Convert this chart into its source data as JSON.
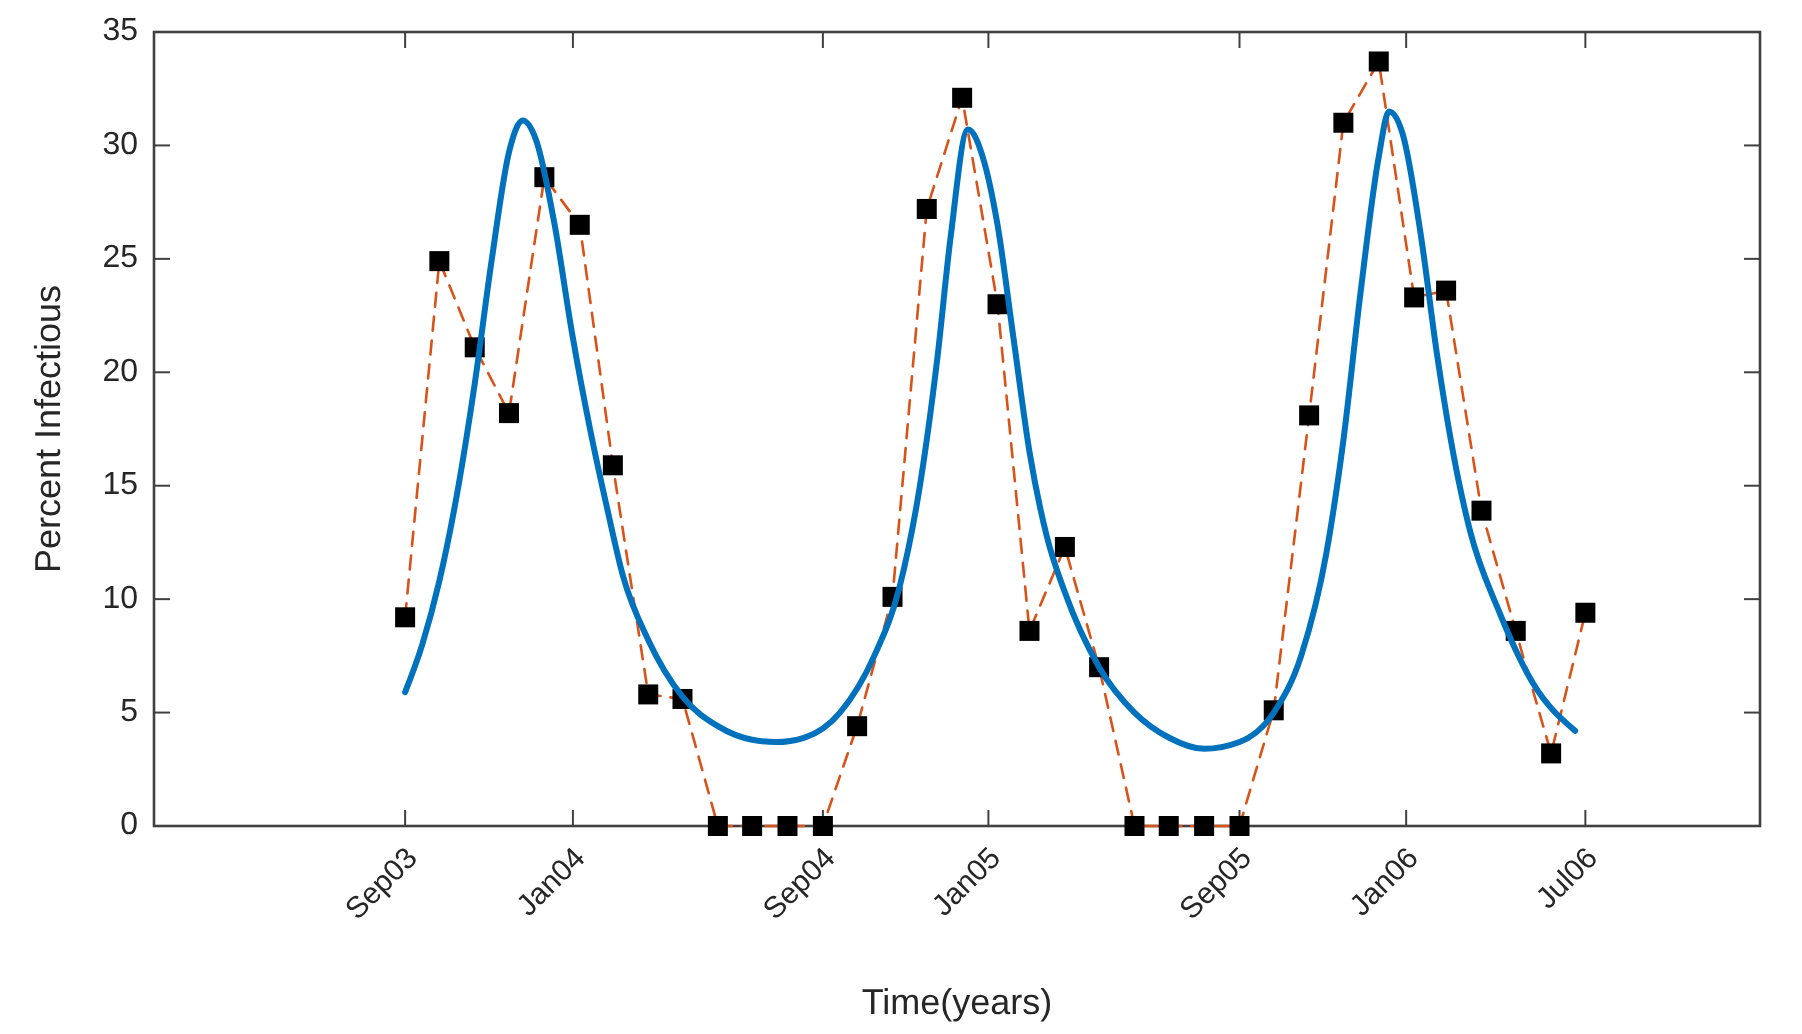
{
  "chart_data": {
    "type": "line",
    "xlabel": "Time(years)",
    "ylabel": "Percent Infectious",
    "xlim": [
      "2003-01-24",
      "2006-12-01"
    ],
    "ylim": [
      0,
      35
    ],
    "xticks": [
      {
        "value": "2003-09-01",
        "label": "Sep03"
      },
      {
        "value": "2004-01-26",
        "label": "Jan04"
      },
      {
        "value": "2004-09-01",
        "label": "Sep04"
      },
      {
        "value": "2005-01-24",
        "label": "Jan05"
      },
      {
        "value": "2005-09-01",
        "label": "Sep05"
      },
      {
        "value": "2006-01-25",
        "label": "Jan06"
      },
      {
        "value": "2006-07-01",
        "label": "Jul06"
      }
    ],
    "yticks": [
      0,
      5,
      10,
      15,
      20,
      25,
      30,
      35
    ],
    "grid": false,
    "x": [
      "2003-09",
      "2003-10",
      "2003-11",
      "2003-12",
      "2004-01",
      "2004-02",
      "2004-03",
      "2004-04",
      "2004-05",
      "2004-06",
      "2004-07",
      "2004-08",
      "2004-09",
      "2004-10",
      "2004-11",
      "2004-12",
      "2005-01",
      "2005-02",
      "2005-03",
      "2005-04",
      "2005-05",
      "2005-06",
      "2005-07",
      "2005-08",
      "2005-09",
      "2005-10",
      "2005-11",
      "2005-12",
      "2006-01",
      "2006-02",
      "2006-03",
      "2006-04",
      "2006-05",
      "2006-06",
      "2006-07"
    ],
    "series": [
      {
        "color": "#d95319",
        "line_style": "dashed",
        "marker": "none",
        "values": [
          9.2,
          24.9,
          21.1,
          18.2,
          28.6,
          26.5,
          15.9,
          5.8,
          5.6,
          0,
          0,
          0,
          0,
          4.4,
          10.1,
          27.2,
          32.1,
          23.0,
          8.6,
          12.3,
          7.0,
          0,
          0,
          0,
          0,
          5.1,
          18.1,
          31.0,
          33.7,
          23.3,
          23.6,
          13.9,
          8.6,
          3.2,
          9.4
        ]
      },
      {
        "type": "scatter",
        "color": "#000000",
        "marker": "square",
        "values": [
          9.2,
          24.9,
          21.1,
          18.2,
          28.6,
          26.5,
          15.9,
          5.8,
          5.6,
          0,
          0,
          0,
          0,
          4.4,
          10.1,
          27.2,
          32.1,
          23.0,
          8.6,
          12.3,
          7.0,
          0,
          0,
          0,
          0,
          5.1,
          18.1,
          31.0,
          33.7,
          23.3,
          23.6,
          13.9,
          8.6,
          3.2,
          9.4
        ]
      },
      {
        "color": "#0072bd",
        "line_style": "solid",
        "marker": "none",
        "x": [
          "2003-09-01",
          "2003-09-16",
          "2003-10-01",
          "2003-10-16",
          "2003-11-01",
          "2003-11-16",
          "2003-12-01",
          "2003-12-13",
          "2003-12-25",
          "2004-01-10",
          "2004-01-25",
          "2004-02-10",
          "2004-02-25",
          "2004-03-10",
          "2004-04-01",
          "2004-05-01",
          "2004-06-01",
          "2004-07-01",
          "2004-07-22",
          "2004-08-16",
          "2004-09-16",
          "2004-10-16",
          "2004-11-07",
          "2004-11-25",
          "2004-12-10",
          "2004-12-22",
          "2005-01-06",
          "2005-01-19",
          "2005-02-01",
          "2005-02-15",
          "2005-03-01",
          "2005-03-16",
          "2005-04-01",
          "2005-05-01",
          "2005-06-01",
          "2005-07-01",
          "2005-08-01",
          "2005-09-01",
          "2005-10-01",
          "2005-10-25",
          "2005-11-16",
          "2005-12-01",
          "2005-12-16",
          "2006-01-01",
          "2006-01-10",
          "2006-01-22",
          "2006-02-07",
          "2006-02-21",
          "2006-03-07",
          "2006-03-22",
          "2006-04-16",
          "2006-05-16",
          "2006-06-22"
        ],
        "values": [
          5.9,
          8.0,
          10.8,
          14.5,
          19.5,
          25.0,
          29.7,
          31.1,
          30.2,
          26.5,
          21.8,
          17.5,
          14.0,
          11.0,
          8.2,
          5.7,
          4.4,
          3.8,
          3.7,
          3.9,
          5.0,
          7.5,
          10.5,
          15.0,
          20.5,
          26.0,
          30.7,
          29.5,
          26.5,
          21.5,
          16.5,
          12.8,
          10.3,
          7.0,
          5.0,
          3.9,
          3.4,
          3.7,
          5.0,
          7.5,
          12.0,
          17.0,
          23.5,
          29.5,
          31.5,
          30.5,
          26.0,
          20.8,
          16.5,
          13.0,
          9.5,
          6.3,
          4.2
        ]
      }
    ]
  }
}
